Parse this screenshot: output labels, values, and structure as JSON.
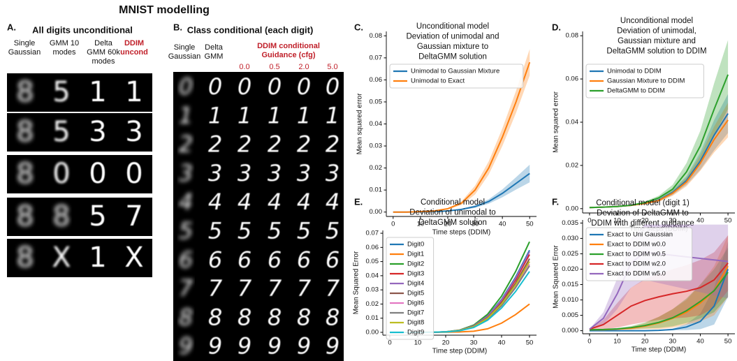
{
  "figure": {
    "title": "MNIST modelling",
    "panel_a": {
      "letter": "A.",
      "title": "All digits unconditional",
      "columns": [
        [
          "Single",
          "Gaussian"
        ],
        [
          "GMM 10",
          "modes"
        ],
        [
          "Delta",
          "GMM 60k",
          "modes"
        ],
        [
          "DDIM",
          "uncond"
        ]
      ],
      "samples": [
        [
          "8",
          "5",
          "1",
          "1"
        ],
        [
          "8",
          "5",
          "3",
          "3"
        ],
        [
          "8",
          "0",
          "0",
          "0"
        ],
        [
          "8",
          "8",
          "5",
          "7"
        ],
        [
          "8",
          "X",
          "1",
          "X"
        ]
      ]
    },
    "panel_b": {
      "letter": "B.",
      "title": "Class conditional (each digit)",
      "columns": [
        [
          "Single",
          "Gaussian"
        ],
        [
          "Delta",
          "GMM"
        ]
      ],
      "guidance_title": [
        "DDIM conditional",
        "Guidance (cfg)"
      ],
      "guidance": [
        "0.0",
        "0.5",
        "2.0",
        "5.0"
      ],
      "digits": [
        "0",
        "1",
        "2",
        "3",
        "4",
        "5",
        "6",
        "7",
        "8",
        "9"
      ]
    }
  },
  "chart_data": [
    {
      "type": "line",
      "panel": "C.",
      "title": [
        "Unconditional model",
        "Deviation of unimodal and",
        "Gaussian mixture to",
        "DeltaGMM solution"
      ],
      "xlabel": "Time steps (DDIM)",
      "ylabel": "Mean squared error",
      "legend": "upper left",
      "x": [
        0,
        5,
        10,
        15,
        20,
        25,
        30,
        35,
        40,
        45,
        50
      ],
      "xlim": [
        -2.5,
        52.5
      ],
      "xticks": [
        0,
        10,
        20,
        30,
        40,
        50
      ],
      "ylim": [
        -0.002,
        0.082
      ],
      "yticks": [
        {
          "value": 0,
          "label": "0.00"
        },
        {
          "value": 0.01,
          "label": "0.01"
        },
        {
          "value": 0.02,
          "label": "0.02"
        },
        {
          "value": 0.03,
          "label": "0.03"
        },
        {
          "value": 0.04,
          "label": "0.04"
        },
        {
          "value": 0.05,
          "label": "0.05"
        },
        {
          "value": 0.06,
          "label": "0.06"
        },
        {
          "value": 0.07,
          "label": "0.07"
        },
        {
          "value": 0.08,
          "label": "0.08"
        }
      ],
      "series": [
        {
          "name": "Unimodal to Gaussian Mixture",
          "color": "#1f77b4",
          "values": [
            0,
            0,
            0.0001,
            0.0002,
            0.0005,
            0.0012,
            0.0025,
            0.0048,
            0.0085,
            0.013,
            0.0175
          ],
          "error": [
            0,
            0,
            0,
            0,
            0.0001,
            0.0003,
            0.0006,
            0.001,
            0.0018,
            0.0028,
            0.004
          ]
        },
        {
          "name": "Unimodal to Exact",
          "color": "#ff7f0e",
          "values": [
            0,
            0,
            0.0002,
            0.0005,
            0.0015,
            0.004,
            0.01,
            0.02,
            0.034,
            0.05,
            0.068
          ],
          "error": [
            0,
            0,
            0,
            0.0001,
            0.0003,
            0.0008,
            0.002,
            0.003,
            0.004,
            0.005,
            0.006
          ]
        }
      ]
    },
    {
      "type": "line",
      "panel": "D.",
      "title": [
        "Unconditional model",
        "Deviation of unimodal,",
        "Gaussian mixture and",
        "DeltaGMM solution to DDIM"
      ],
      "xlabel": "Time steps (DDIM)",
      "ylabel": "Mean squared error",
      "legend": "upper left",
      "x": [
        0,
        5,
        10,
        15,
        20,
        25,
        30,
        35,
        40,
        45,
        50
      ],
      "xlim": [
        -2.5,
        52.5
      ],
      "xticks": [
        0,
        10,
        20,
        30,
        40,
        50
      ],
      "ylim": [
        -0.002,
        0.082
      ],
      "yticks": [
        {
          "value": 0,
          "label": "0.00"
        },
        {
          "value": 0.02,
          "label": "0.02"
        },
        {
          "value": 0.04,
          "label": "0.04"
        },
        {
          "value": 0.06,
          "label": "0.06"
        },
        {
          "value": 0.08,
          "label": "0.08"
        }
      ],
      "series": [
        {
          "name": "Unimodal to DDIM",
          "color": "#1f77b4",
          "values": [
            0.0005,
            0.0007,
            0.001,
            0.0015,
            0.0025,
            0.004,
            0.0075,
            0.013,
            0.022,
            0.034,
            0.044
          ],
          "error": [
            0,
            0,
            0.0001,
            0.0002,
            0.0004,
            0.0007,
            0.0012,
            0.002,
            0.004,
            0.007,
            0.009
          ]
        },
        {
          "name": "Gaussian Mixture to DDIM",
          "color": "#ff7f0e",
          "values": [
            0.0005,
            0.0007,
            0.001,
            0.0015,
            0.0024,
            0.0038,
            0.0071,
            0.0123,
            0.021,
            0.032,
            0.041
          ],
          "error": [
            0,
            0,
            0.0001,
            0.0002,
            0.0004,
            0.0007,
            0.0012,
            0.002,
            0.0035,
            0.006,
            0.008
          ]
        },
        {
          "name": "DeltaGMM to DDIM",
          "color": "#2ca02c",
          "values": [
            0.0005,
            0.0007,
            0.001,
            0.0016,
            0.0028,
            0.005,
            0.009,
            0.017,
            0.029,
            0.046,
            0.062
          ],
          "error": [
            0,
            0,
            0.0001,
            0.0002,
            0.0005,
            0.001,
            0.002,
            0.004,
            0.007,
            0.012,
            0.016
          ]
        }
      ]
    },
    {
      "type": "line",
      "panel": "E.",
      "title": [
        "Conditional model",
        "Deviation of unimodal to",
        "DeltaGMM solution"
      ],
      "xlabel": "Time step (DDIM)",
      "ylabel": "Mean Squared Error",
      "legend": "upper left",
      "x": [
        0,
        5,
        10,
        15,
        20,
        25,
        30,
        35,
        40,
        45,
        50
      ],
      "xlim": [
        -2.5,
        52.5
      ],
      "xticks": [
        0,
        10,
        20,
        30,
        40,
        50
      ],
      "ylim": [
        -0.002,
        0.072
      ],
      "yticks": [
        {
          "value": 0,
          "label": "0.00"
        },
        {
          "value": 0.01,
          "label": "0.01"
        },
        {
          "value": 0.02,
          "label": "0.02"
        },
        {
          "value": 0.03,
          "label": "0.03"
        },
        {
          "value": 0.04,
          "label": "0.04"
        },
        {
          "value": 0.05,
          "label": "0.05"
        },
        {
          "value": 0.06,
          "label": "0.06"
        },
        {
          "value": 0.07,
          "label": "0.07"
        }
      ],
      "series": [
        {
          "name": "Digit0",
          "color": "#1f77b4",
          "values": [
            0,
            0,
            0,
            0.0001,
            0.0003,
            0.0015,
            0.0046,
            0.0116,
            0.0232,
            0.0389,
            0.058
          ]
        },
        {
          "name": "Digit1",
          "color": "#ff7f0e",
          "values": [
            0,
            0,
            0,
            0,
            0.0001,
            0.0003,
            0.0008,
            0.0025,
            0.0065,
            0.0125,
            0.02
          ]
        },
        {
          "name": "Digit2",
          "color": "#2ca02c",
          "values": [
            0,
            0,
            0,
            0.0001,
            0.0004,
            0.0016,
            0.0051,
            0.0128,
            0.0256,
            0.0429,
            0.064
          ]
        },
        {
          "name": "Digit3",
          "color": "#d62728",
          "values": [
            0,
            0,
            0,
            0.0001,
            0.0003,
            0.0014,
            0.0044,
            0.011,
            0.022,
            0.0369,
            0.055
          ]
        },
        {
          "name": "Digit4",
          "color": "#9467bd",
          "values": [
            0,
            0,
            0,
            0.0001,
            0.0003,
            0.0014,
            0.0046,
            0.0114,
            0.0228,
            0.0382,
            0.057
          ]
        },
        {
          "name": "Digit5",
          "color": "#8c564b",
          "values": [
            0,
            0,
            0,
            0.0001,
            0.0003,
            0.0013,
            0.0042,
            0.0104,
            0.0208,
            0.0348,
            0.052
          ]
        },
        {
          "name": "Digit6",
          "color": "#e377c2",
          "values": [
            0,
            0,
            0,
            0.0001,
            0.0003,
            0.0012,
            0.0038,
            0.0096,
            0.0192,
            0.0322,
            0.048
          ]
        },
        {
          "name": "Digit7",
          "color": "#7f7f7f",
          "values": [
            0,
            0,
            0,
            0.0001,
            0.0003,
            0.0012,
            0.0038,
            0.0094,
            0.0188,
            0.0315,
            0.047
          ]
        },
        {
          "name": "Digit8",
          "color": "#bcbd22",
          "values": [
            0,
            0,
            0,
            0.0001,
            0.0003,
            0.0013,
            0.004,
            0.01,
            0.02,
            0.0335,
            0.05
          ]
        },
        {
          "name": "Digit9",
          "color": "#17becf",
          "values": [
            0,
            0,
            0,
            0.0001,
            0.0003,
            0.0011,
            0.0034,
            0.0086,
            0.0172,
            0.0288,
            0.043
          ]
        }
      ]
    },
    {
      "type": "line",
      "panel": "F.",
      "title": [
        "Conditional model (digit 1)",
        "Deviation of DeltaGMM to",
        "DDIM with different guidance"
      ],
      "xlabel": "Time step (DDIM)",
      "ylabel": "Mean Squared Error",
      "legend": "upper left",
      "x": [
        0,
        5,
        10,
        15,
        20,
        25,
        30,
        35,
        40,
        45,
        50
      ],
      "xlim": [
        -2.5,
        52.5
      ],
      "xticks": [
        0,
        10,
        20,
        30,
        40,
        50
      ],
      "ylim": [
        -0.001,
        0.036
      ],
      "yticks": [
        {
          "value": 0,
          "label": "0.000"
        },
        {
          "value": 0.005,
          "label": "0.005"
        },
        {
          "value": 0.01,
          "label": "0.010"
        },
        {
          "value": 0.015,
          "label": "0.015"
        },
        {
          "value": 0.02,
          "label": "0.020"
        },
        {
          "value": 0.025,
          "label": "0.025"
        },
        {
          "value": 0.03,
          "label": "0.030"
        },
        {
          "value": 0.035,
          "label": "0.035"
        }
      ],
      "series": [
        {
          "name": "Exact to Uni Gaussian",
          "color": "#1f77b4",
          "values": [
            0,
            0,
            0,
            0,
            0,
            0.0001,
            0.0004,
            0.0012,
            0.003,
            0.008,
            0.02
          ],
          "error": [
            0,
            0,
            0,
            0,
            0,
            0.0001,
            0.0003,
            0.001,
            0.0025,
            0.006,
            0.009
          ]
        },
        {
          "name": "Exact to DDIM w0.0",
          "color": "#ff7f0e",
          "values": [
            0.0003,
            0.0003,
            0.0005,
            0.0008,
            0.0015,
            0.0025,
            0.004,
            0.006,
            0.009,
            0.013,
            0.021
          ],
          "error": [
            0,
            0.0001,
            0.0002,
            0.0005,
            0.001,
            0.002,
            0.003,
            0.004,
            0.006,
            0.008,
            0.01
          ]
        },
        {
          "name": "Exact to DDIM w0.5",
          "color": "#2ca02c",
          "values": [
            0.0003,
            0.0004,
            0.0006,
            0.001,
            0.0017,
            0.0027,
            0.0042,
            0.0065,
            0.0095,
            0.013,
            0.019
          ],
          "error": [
            0,
            0.0001,
            0.0002,
            0.0005,
            0.001,
            0.0018,
            0.0028,
            0.004,
            0.0055,
            0.007,
            0.008
          ]
        },
        {
          "name": "Exact to DDIM w2.0",
          "color": "#d62728",
          "values": [
            0.0005,
            0.002,
            0.005,
            0.008,
            0.0098,
            0.011,
            0.012,
            0.0128,
            0.014,
            0.0165,
            0.022
          ],
          "error": [
            0,
            0.0015,
            0.004,
            0.006,
            0.007,
            0.0075,
            0.008,
            0.0085,
            0.009,
            0.009,
            0.009
          ]
        },
        {
          "name": "Exact to DDIM w5.0",
          "color": "#9467bd",
          "values": [
            0.0005,
            0.004,
            0.012,
            0.022,
            0.0255,
            0.025,
            0.0245,
            0.024,
            0.0235,
            0.023,
            0.0225
          ],
          "error": [
            0,
            0.002,
            0.005,
            0.008,
            0.009,
            0.0095,
            0.01,
            0.0105,
            0.011,
            0.0115,
            0.012
          ]
        }
      ]
    }
  ]
}
